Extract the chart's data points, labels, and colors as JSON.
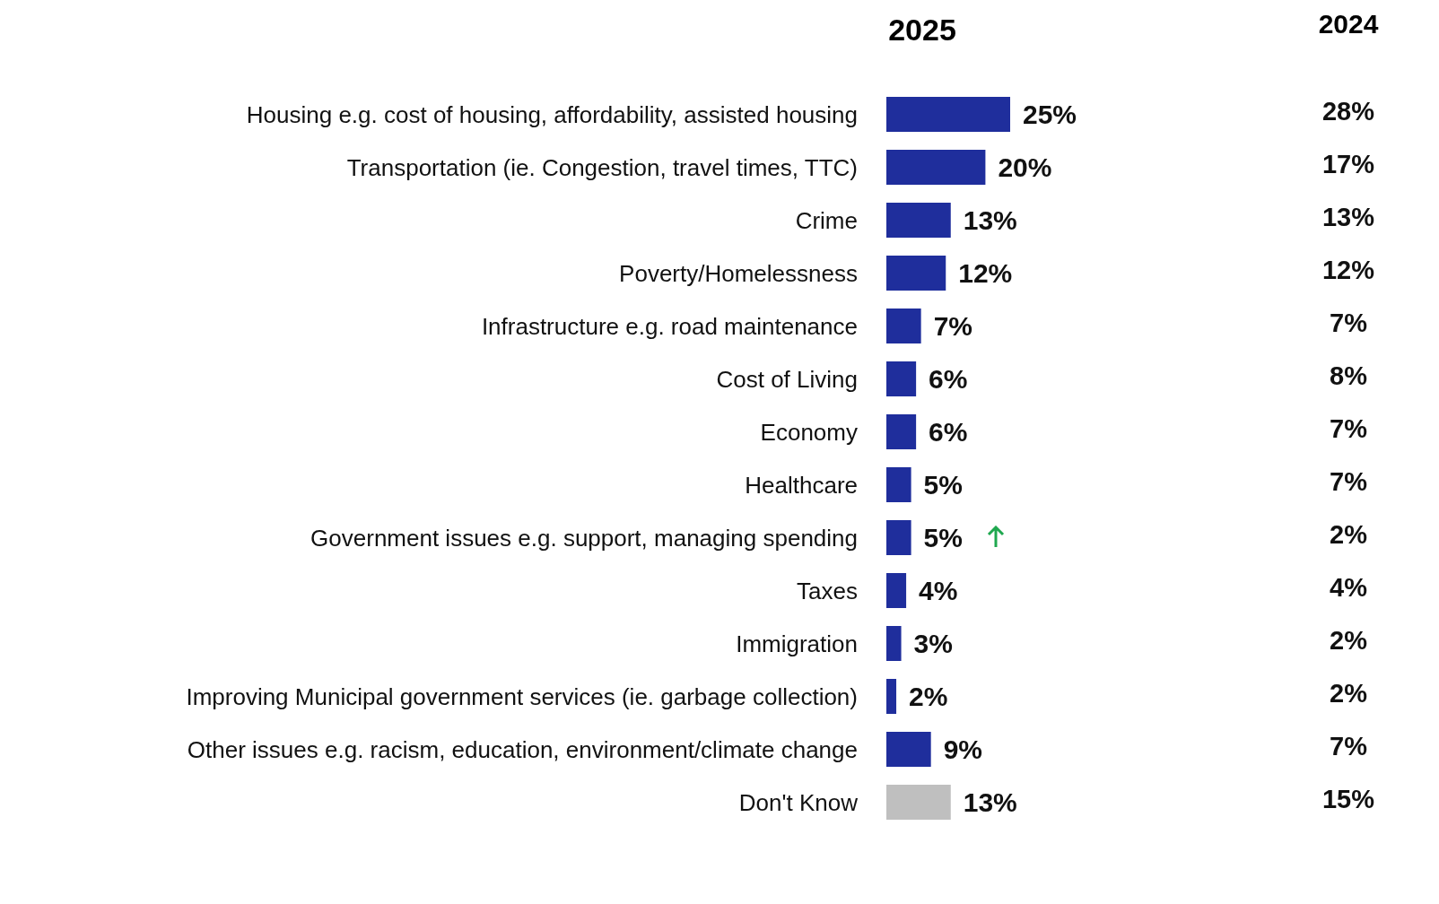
{
  "chart_data": [
    {
      "type": "bar",
      "orientation": "horizontal",
      "title": "2025",
      "categories": [
        "Housing e.g. cost of housing, affordability, assisted housing",
        "Transportation (ie. Congestion, travel times, TTC)",
        "Crime",
        "Poverty/Homelessness",
        "Infrastructure e.g. road maintenance",
        "Cost of Living",
        "Economy",
        "Healthcare",
        "Government issues e.g. support, managing spending",
        "Taxes",
        "Immigration",
        "Improving Municipal government services (ie. garbage collection)",
        "Other issues e.g. racism, education, environment/climate change",
        "Don't Know"
      ],
      "values": [
        25,
        20,
        13,
        12,
        7,
        6,
        6,
        5,
        5,
        4,
        3,
        2,
        9,
        13
      ],
      "value_labels": [
        "25%",
        "20%",
        "13%",
        "12%",
        "7%",
        "6%",
        "6%",
        "5%",
        "5%",
        "4%",
        "3%",
        "2%",
        "9%",
        "13%"
      ],
      "colors": [
        "#1f2e9c",
        "#1f2e9c",
        "#1f2e9c",
        "#1f2e9c",
        "#1f2e9c",
        "#1f2e9c",
        "#1f2e9c",
        "#1f2e9c",
        "#1f2e9c",
        "#1f2e9c",
        "#1f2e9c",
        "#1f2e9c",
        "#1f2e9c",
        "#bfbfbf"
      ]
    },
    {
      "type": "other",
      "title": "2024",
      "values": [
        28,
        17,
        13,
        12,
        7,
        8,
        7,
        7,
        2,
        4,
        2,
        2,
        7,
        15
      ],
      "value_labels": [
        "28%",
        "17%",
        "13%",
        "12%",
        "7%",
        "8%",
        "7%",
        "7%",
        "2%",
        "4%",
        "2%",
        "2%",
        "7%",
        "15%"
      ]
    }
  ]
}
